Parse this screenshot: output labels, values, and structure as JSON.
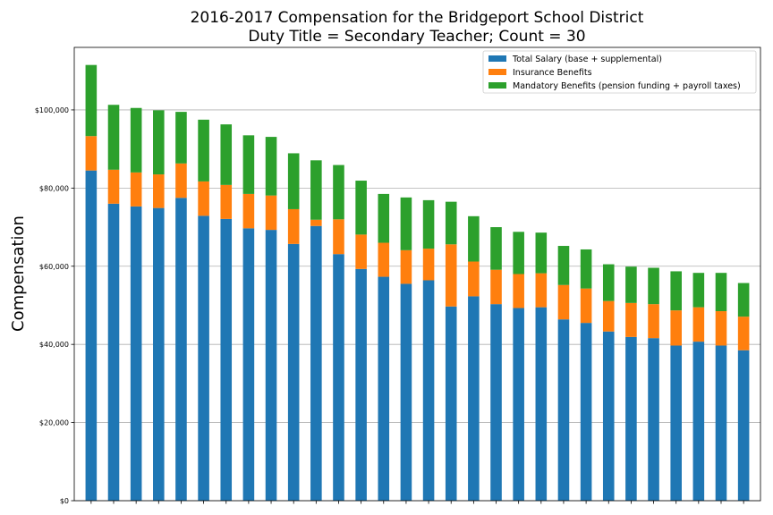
{
  "chart_data": {
    "type": "bar",
    "stacked": true,
    "title_lines": [
      "2016-2017 Compensation for the Bridgeport School District",
      "Duty Title = Secondary Teacher; Count = 30"
    ],
    "xlabel": "",
    "ylabel": "Compensation",
    "ylim": [
      0,
      116000
    ],
    "yticks": [
      0,
      20000,
      40000,
      60000,
      80000,
      100000
    ],
    "ytick_labels": [
      "$0",
      "$20,000",
      "$40,000",
      "$60,000",
      "$80,000",
      "$100,000"
    ],
    "grid": "y",
    "legend_position": "top-right",
    "bar_count": 30,
    "series": [
      {
        "name": "Total Salary (base + supplemental)",
        "color": "#1f77b4",
        "values": [
          84500,
          76000,
          75300,
          74900,
          77500,
          72900,
          72100,
          69700,
          69300,
          65700,
          70300,
          63100,
          59300,
          57300,
          55500,
          56400,
          49700,
          52300,
          50300,
          49300,
          49500,
          46400,
          45500,
          43300,
          41900,
          41600,
          39700,
          40700,
          39700,
          38500
        ]
      },
      {
        "name": "Insurance Benefits",
        "color": "#ff7f0e",
        "values": [
          8800,
          8700,
          8700,
          8600,
          8800,
          8800,
          8700,
          8800,
          8800,
          8900,
          1600,
          8900,
          8800,
          8700,
          8600,
          8100,
          15900,
          8900,
          8800,
          8700,
          8700,
          8800,
          8800,
          7800,
          8700,
          8700,
          9000,
          8800,
          8800,
          8600
        ]
      },
      {
        "name": "Mandatory Benefits (pension funding + payroll taxes)",
        "color": "#2ca02c",
        "values": [
          18200,
          16600,
          16500,
          16400,
          13200,
          15800,
          15500,
          15000,
          15000,
          14300,
          15200,
          13900,
          13800,
          12500,
          13500,
          12400,
          10900,
          11600,
          10900,
          10800,
          10400,
          10000,
          10000,
          9400,
          9300,
          9300,
          10000,
          8800,
          9800,
          8600
        ]
      }
    ]
  }
}
